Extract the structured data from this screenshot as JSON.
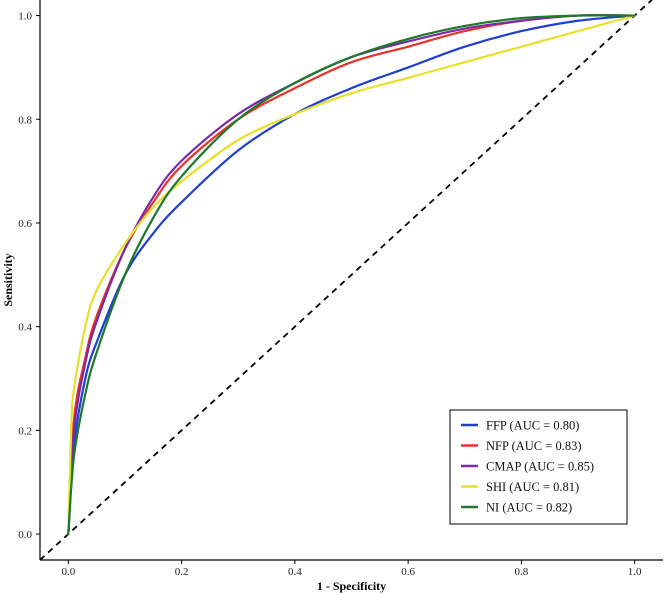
{
  "chart_data": {
    "type": "line",
    "title": "",
    "xlabel": "1 - Specificity",
    "ylabel": "Sensitivity",
    "xlim": [
      -0.05,
      1.05
    ],
    "ylim": [
      -0.05,
      1.03
    ],
    "x_ticks": [
      0.0,
      0.2,
      0.4,
      0.6,
      0.8,
      1.0
    ],
    "y_ticks": [
      0.0,
      0.2,
      0.4,
      0.6,
      0.8,
      1.0
    ],
    "x_tick_labels": [
      "0.0",
      "0.2",
      "0.4",
      "0.6",
      "0.8",
      "1.0"
    ],
    "y_tick_labels": [
      "0.0",
      "0.2",
      "0.4",
      "0.6",
      "0.8",
      "1.0"
    ],
    "grid": false,
    "legend_position": "bottom-right",
    "reference_line": {
      "style": "dashed",
      "color": "#000000",
      "x": [
        0,
        1
      ],
      "y": [
        0,
        1
      ]
    },
    "series": [
      {
        "name": "FFP (AUC = 0.80)",
        "color": "#1f3fd1",
        "x": [
          0,
          0.01,
          0.03,
          0.05,
          0.1,
          0.15,
          0.2,
          0.3,
          0.4,
          0.5,
          0.6,
          0.7,
          0.8,
          0.9,
          1.0
        ],
        "y": [
          0,
          0.17,
          0.3,
          0.37,
          0.5,
          0.58,
          0.64,
          0.74,
          0.81,
          0.86,
          0.9,
          0.94,
          0.97,
          0.99,
          1.0
        ]
      },
      {
        "name": "NFP (AUC = 0.83)",
        "color": "#e8332a",
        "x": [
          0,
          0.01,
          0.03,
          0.05,
          0.1,
          0.15,
          0.2,
          0.3,
          0.4,
          0.5,
          0.6,
          0.7,
          0.8,
          0.9,
          1.0
        ],
        "y": [
          0,
          0.22,
          0.34,
          0.42,
          0.55,
          0.64,
          0.71,
          0.8,
          0.86,
          0.91,
          0.94,
          0.97,
          0.99,
          1.0,
          1.0
        ]
      },
      {
        "name": "CMAP (AUC = 0.85)",
        "color": "#7b2aa8",
        "x": [
          0,
          0.01,
          0.03,
          0.05,
          0.1,
          0.15,
          0.2,
          0.3,
          0.4,
          0.5,
          0.6,
          0.7,
          0.8,
          0.9,
          1.0
        ],
        "y": [
          0,
          0.2,
          0.33,
          0.41,
          0.55,
          0.65,
          0.72,
          0.81,
          0.87,
          0.92,
          0.95,
          0.975,
          0.99,
          1.0,
          1.0
        ]
      },
      {
        "name": "SHI (AUC = 0.81)",
        "color": "#e8e02a",
        "x": [
          0,
          0.005,
          0.01,
          0.03,
          0.05,
          0.1,
          0.15,
          0.2,
          0.3,
          0.4,
          0.5,
          0.6,
          0.7,
          0.8,
          0.9,
          1.0
        ],
        "y": [
          0,
          0.2,
          0.28,
          0.4,
          0.47,
          0.56,
          0.63,
          0.68,
          0.76,
          0.81,
          0.85,
          0.88,
          0.91,
          0.94,
          0.97,
          1.0
        ]
      },
      {
        "name": "NI (AUC = 0.82)",
        "color": "#1c7a2a",
        "x": [
          0,
          0.01,
          0.03,
          0.05,
          0.1,
          0.15,
          0.2,
          0.3,
          0.4,
          0.5,
          0.6,
          0.7,
          0.8,
          0.9,
          1.0
        ],
        "y": [
          0,
          0.15,
          0.27,
          0.35,
          0.5,
          0.61,
          0.69,
          0.8,
          0.87,
          0.92,
          0.955,
          0.98,
          0.995,
          1.0,
          1.0
        ]
      }
    ]
  }
}
